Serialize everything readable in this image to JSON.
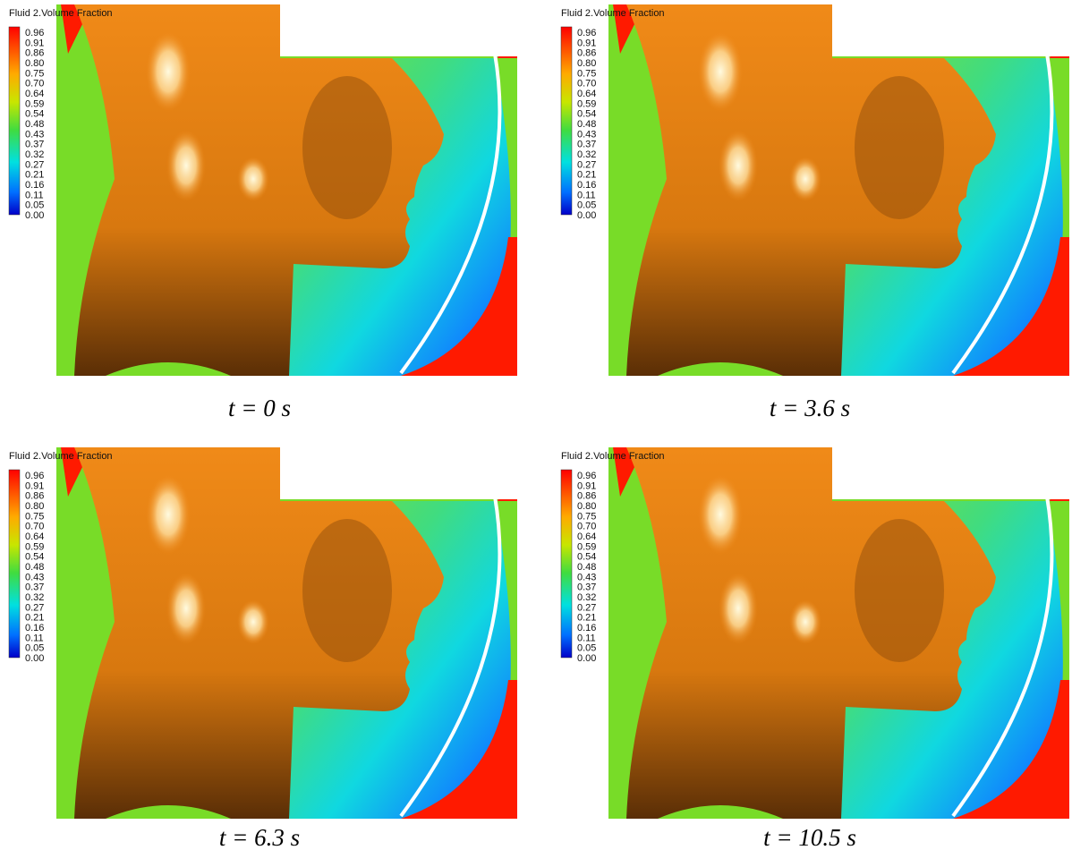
{
  "panels": [
    {
      "legend_title": "Fluid 2.Volume Fraction",
      "legend_ticks": [
        "0.96",
        "0.91",
        "0.86",
        "0.80",
        "0.75",
        "0.70",
        "0.64",
        "0.59",
        "0.54",
        "0.48",
        "0.43",
        "0.37",
        "0.32",
        "0.27",
        "0.21",
        "0.16",
        "0.11",
        "0.05",
        "0.00"
      ],
      "caption": "t = 0 s"
    },
    {
      "legend_title": "Fluid 2.Volume Fraction",
      "legend_ticks": [
        "0.96",
        "0.91",
        "0.86",
        "0.80",
        "0.75",
        "0.70",
        "0.64",
        "0.59",
        "0.54",
        "0.48",
        "0.43",
        "0.37",
        "0.32",
        "0.27",
        "0.21",
        "0.16",
        "0.11",
        "0.05",
        "0.00"
      ],
      "caption": "t = 3.6 s"
    },
    {
      "legend_title": "Fluid 2.Volume Fraction",
      "legend_ticks": [
        "0.96",
        "0.91",
        "0.86",
        "0.80",
        "0.75",
        "0.70",
        "0.64",
        "0.59",
        "0.54",
        "0.48",
        "0.43",
        "0.37",
        "0.32",
        "0.27",
        "0.21",
        "0.16",
        "0.11",
        "0.05",
        "0.00"
      ],
      "caption": "t = 6.3 s"
    },
    {
      "legend_title": "Fluid 2.Volume Fraction",
      "legend_ticks": [
        "0.96",
        "0.91",
        "0.86",
        "0.80",
        "0.75",
        "0.70",
        "0.64",
        "0.59",
        "0.54",
        "0.48",
        "0.43",
        "0.37",
        "0.32",
        "0.27",
        "0.21",
        "0.16",
        "0.11",
        "0.05",
        "0.00"
      ],
      "caption": "t = 10.5 s"
    }
  ]
}
